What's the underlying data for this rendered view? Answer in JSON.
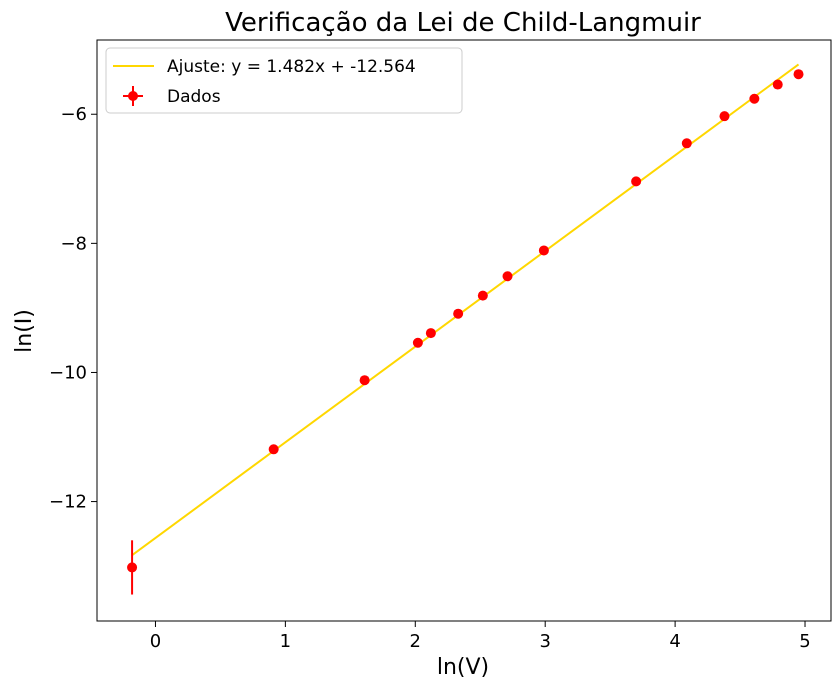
{
  "chart_data": {
    "type": "scatter",
    "title": "Verificação da Lei de Child-Langmuir",
    "xlabel": "ln(V)",
    "ylabel": "ln(I)",
    "xlim": [
      -0.45,
      5.2
    ],
    "ylim": [
      -13.85,
      -4.85
    ],
    "xticks": [
      0,
      1,
      2,
      3,
      4,
      5
    ],
    "xtick_labels": [
      "0",
      "1",
      "2",
      "3",
      "4",
      "5"
    ],
    "yticks": [
      -12,
      -10,
      -8,
      -6
    ],
    "ytick_labels": [
      "−12",
      "−10",
      "−8",
      "−6"
    ],
    "grid": false,
    "legend_position": "top-left",
    "series": [
      {
        "name": "Ajuste: y = 1.482x + -12.564",
        "kind": "line",
        "color": "#FFD700",
        "slope": 1.482,
        "intercept": -12.564,
        "x_range": [
          -0.18,
          4.95
        ]
      },
      {
        "name": "Dados",
        "kind": "errorbar",
        "color": "#FF0000",
        "x": [
          -0.18,
          0.91,
          1.61,
          2.02,
          2.12,
          2.33,
          2.52,
          2.71,
          2.99,
          3.7,
          4.09,
          4.38,
          4.61,
          4.79,
          4.95
        ],
        "y": [
          -13.02,
          -11.19,
          -10.12,
          -9.54,
          -9.39,
          -9.09,
          -8.81,
          -8.51,
          -8.11,
          -7.04,
          -6.45,
          -6.03,
          -5.76,
          -5.54,
          -5.38
        ],
        "y_err": [
          0.42,
          0.05,
          0.03,
          0.02,
          0.02,
          0.02,
          0.02,
          0.01,
          0.01,
          0.01,
          0.01,
          0.01,
          0.01,
          0.01,
          0.01
        ]
      }
    ]
  }
}
